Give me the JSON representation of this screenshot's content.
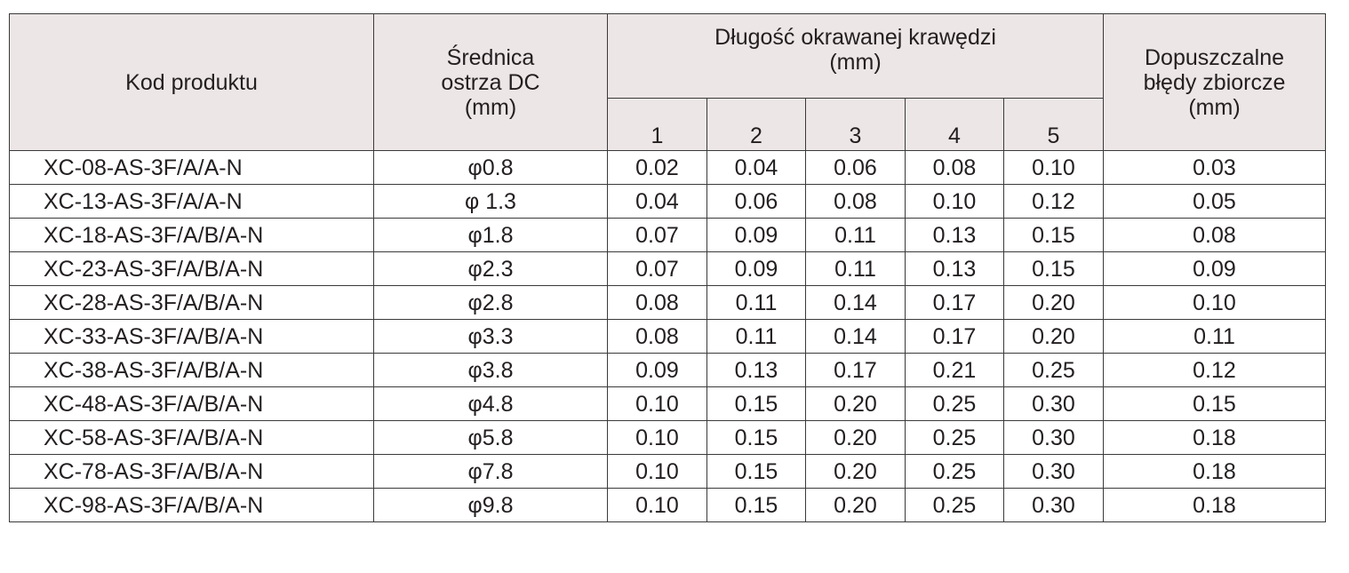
{
  "table": {
    "headers": {
      "product_code": "Kod produktu",
      "diameter": [
        "Średnica",
        "ostrza DC",
        "(mm)"
      ],
      "edge_length": [
        "Długość okrawanej krawędzi",
        "(mm)"
      ],
      "edge_sub": [
        "1",
        "2",
        "3",
        "4",
        "5"
      ],
      "tolerance": [
        "Dopuszczalne",
        "błędy zbiorcze",
        "(mm)"
      ]
    },
    "rows": [
      {
        "code": "XC-08-AS-3F/A/A-N",
        "diameter": "φ0.8",
        "v": [
          "0.02",
          "0.04",
          "0.06",
          "0.08",
          "0.10"
        ],
        "tolerance": "0.03"
      },
      {
        "code": "XC-13-AS-3F/A/A-N",
        "diameter": "φ 1.3",
        "v": [
          "0.04",
          "0.06",
          "0.08",
          "0.10",
          "0.12"
        ],
        "tolerance": "0.05"
      },
      {
        "code": "XC-18-AS-3F/A/B/A-N",
        "diameter": "φ1.8",
        "v": [
          "0.07",
          "0.09",
          "0.11",
          "0.13",
          "0.15"
        ],
        "tolerance": "0.08"
      },
      {
        "code": "XC-23-AS-3F/A/B/A-N",
        "diameter": "φ2.3",
        "v": [
          "0.07",
          "0.09",
          "0.11",
          "0.13",
          "0.15"
        ],
        "tolerance": "0.09"
      },
      {
        "code": "XC-28-AS-3F/A/B/A-N",
        "diameter": "φ2.8",
        "v": [
          "0.08",
          "0.11",
          "0.14",
          "0.17",
          "0.20"
        ],
        "tolerance": "0.10"
      },
      {
        "code": "XC-33-AS-3F/A/B/A-N",
        "diameter": "φ3.3",
        "v": [
          "0.08",
          "0.11",
          "0.14",
          "0.17",
          "0.20"
        ],
        "tolerance": "0.11"
      },
      {
        "code": "XC-38-AS-3F/A/B/A-N",
        "diameter": "φ3.8",
        "v": [
          "0.09",
          "0.13",
          "0.17",
          "0.21",
          "0.25"
        ],
        "tolerance": "0.12"
      },
      {
        "code": "XC-48-AS-3F/A/B/A-N",
        "diameter": "φ4.8",
        "v": [
          "0.10",
          "0.15",
          "0.20",
          "0.25",
          "0.30"
        ],
        "tolerance": "0.15"
      },
      {
        "code": "XC-58-AS-3F/A/B/A-N",
        "diameter": "φ5.8",
        "v": [
          "0.10",
          "0.15",
          "0.20",
          "0.25",
          "0.30"
        ],
        "tolerance": "0.18"
      },
      {
        "code": "XC-78-AS-3F/A/B/A-N",
        "diameter": "φ7.8",
        "v": [
          "0.10",
          "0.15",
          "0.20",
          "0.25",
          "0.30"
        ],
        "tolerance": "0.18"
      },
      {
        "code": "XC-98-AS-3F/A/B/A-N",
        "diameter": "φ9.8",
        "v": [
          "0.10",
          "0.15",
          "0.20",
          "0.25",
          "0.30"
        ],
        "tolerance": "0.18"
      }
    ]
  }
}
